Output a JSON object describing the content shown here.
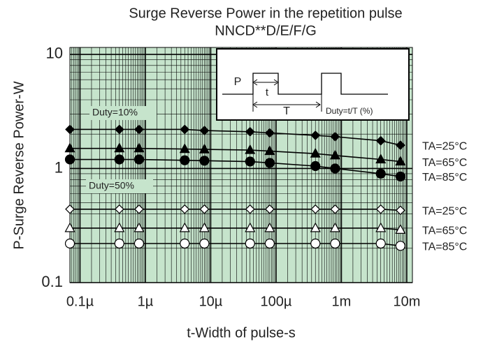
{
  "chart_data": {
    "type": "line",
    "title": "Surge Reverse Power in the repetition pulse",
    "subtitle": "NNCD**D/E/F/G",
    "xlabel": "t-Width of pulse-s",
    "ylabel": "P-Surge Reverse Power-W",
    "xscale": "log",
    "yscale": "log",
    "grid": true,
    "background": "#c6e4cc",
    "xlim": [
      7e-08,
      0.0122
    ],
    "ylim": [
      0.1,
      11.5
    ],
    "xticks": [
      {
        "value": 1e-07,
        "label": "0.1µ"
      },
      {
        "value": 1e-06,
        "label": "1µ"
      },
      {
        "value": 1e-05,
        "label": "10µ"
      },
      {
        "value": 0.0001,
        "label": "100µ"
      },
      {
        "value": 0.001,
        "label": "1m"
      },
      {
        "value": 0.01,
        "label": "10m"
      }
    ],
    "yticks": [
      0.1,
      1,
      10
    ],
    "x": [
      7e-08,
      4e-07,
      8e-07,
      4e-06,
      8e-06,
      4e-05,
      8e-05,
      0.0004,
      0.0008,
      0.004,
      0.008
    ],
    "series": [
      {
        "name": "TA=25°C",
        "color": "#000000",
        "marker": "diamond",
        "filled": true,
        "values": [
          2.2,
          2.2,
          2.2,
          2.2,
          2.15,
          2.1,
          2.05,
          1.95,
          1.9,
          1.75,
          1.6
        ]
      },
      {
        "name": "TA=65°C",
        "color": "#000000",
        "marker": "triangle",
        "filled": true,
        "values": [
          1.5,
          1.5,
          1.5,
          1.48,
          1.47,
          1.45,
          1.42,
          1.35,
          1.3,
          1.2,
          1.15
        ]
      },
      {
        "name": "TA=85°C",
        "color": "#000000",
        "marker": "circle",
        "filled": true,
        "values": [
          1.2,
          1.2,
          1.2,
          1.18,
          1.17,
          1.15,
          1.12,
          1.05,
          1.0,
          0.9,
          0.85
        ]
      },
      {
        "name": "TA=25°C",
        "color": "#000000",
        "marker": "diamond",
        "filled": false,
        "values": [
          0.44,
          0.44,
          0.44,
          0.44,
          0.44,
          0.44,
          0.44,
          0.44,
          0.44,
          0.44,
          0.43
        ]
      },
      {
        "name": "TA=65°C",
        "color": "#000000",
        "marker": "triangle",
        "filled": false,
        "values": [
          0.3,
          0.3,
          0.3,
          0.3,
          0.3,
          0.3,
          0.3,
          0.3,
          0.3,
          0.3,
          0.29
        ]
      },
      {
        "name": "TA=85°C",
        "color": "#000000",
        "marker": "circle",
        "filled": false,
        "values": [
          0.22,
          0.22,
          0.22,
          0.22,
          0.22,
          0.22,
          0.22,
          0.22,
          0.22,
          0.22,
          0.21
        ]
      }
    ],
    "annotations": [
      "Duty=10%",
      "Duty=50%"
    ],
    "inset": {
      "pulse": "P",
      "width": "t",
      "period": "T",
      "duty": "Duty=t/T (%)"
    }
  }
}
